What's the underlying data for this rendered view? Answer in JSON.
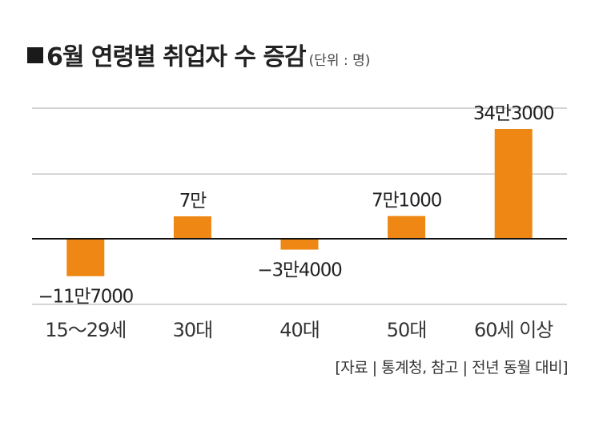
{
  "title": "6월 연령별 취업자 수 증감",
  "unit_note": "(단위 : 명)",
  "source": "[자료 | 통계청, 참고 | 전년 동월 대비]",
  "colors": {
    "bar": "#ee8713",
    "grid": "#aaaaaa",
    "axis": "#111111"
  },
  "chart_data": {
    "type": "bar",
    "title": "6월 연령별 취업자 수 증감",
    "categories": [
      "15～29세",
      "30대",
      "40대",
      "50대",
      "60세 이상"
    ],
    "values": [
      -117000,
      70000,
      -34000,
      71000,
      343000
    ],
    "labels": [
      "−11만7000",
      "7만",
      "−3만4000",
      "7만1000",
      "34만3000"
    ],
    "ylim": [
      -170000,
      400000
    ],
    "grid": true,
    "legend": "none"
  }
}
